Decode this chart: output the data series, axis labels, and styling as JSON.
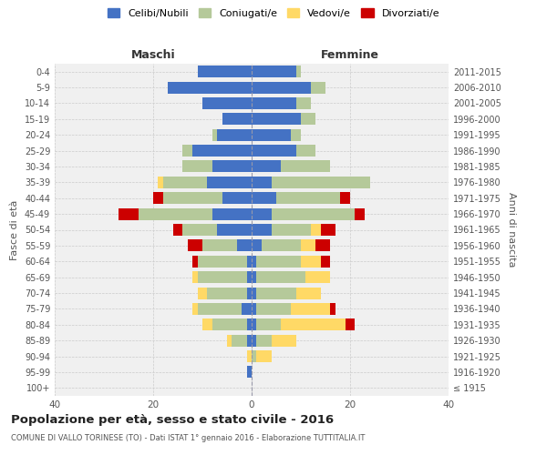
{
  "age_groups": [
    "100+",
    "95-99",
    "90-94",
    "85-89",
    "80-84",
    "75-79",
    "70-74",
    "65-69",
    "60-64",
    "55-59",
    "50-54",
    "45-49",
    "40-44",
    "35-39",
    "30-34",
    "25-29",
    "20-24",
    "15-19",
    "10-14",
    "5-9",
    "0-4"
  ],
  "birth_years": [
    "≤ 1915",
    "1916-1920",
    "1921-1925",
    "1926-1930",
    "1931-1935",
    "1936-1940",
    "1941-1945",
    "1946-1950",
    "1951-1955",
    "1956-1960",
    "1961-1965",
    "1966-1970",
    "1971-1975",
    "1976-1980",
    "1981-1985",
    "1986-1990",
    "1991-1995",
    "1996-2000",
    "2001-2005",
    "2006-2010",
    "2011-2015"
  ],
  "male": {
    "celibi": [
      0,
      1,
      0,
      1,
      1,
      2,
      1,
      1,
      1,
      3,
      7,
      8,
      6,
      9,
      8,
      12,
      7,
      6,
      10,
      17,
      11
    ],
    "coniugati": [
      0,
      0,
      0,
      3,
      7,
      9,
      8,
      10,
      10,
      7,
      7,
      15,
      12,
      9,
      6,
      2,
      1,
      0,
      0,
      0,
      0
    ],
    "vedovi": [
      0,
      0,
      1,
      1,
      2,
      1,
      2,
      1,
      0,
      0,
      0,
      0,
      0,
      1,
      0,
      0,
      0,
      0,
      0,
      0,
      0
    ],
    "divorziati": [
      0,
      0,
      0,
      0,
      0,
      0,
      0,
      0,
      1,
      3,
      2,
      4,
      2,
      0,
      0,
      0,
      0,
      0,
      0,
      0,
      0
    ]
  },
  "female": {
    "nubili": [
      0,
      0,
      0,
      1,
      1,
      1,
      1,
      1,
      1,
      2,
      4,
      4,
      5,
      4,
      6,
      9,
      8,
      10,
      9,
      12,
      9
    ],
    "coniugate": [
      0,
      0,
      1,
      3,
      5,
      7,
      8,
      10,
      9,
      8,
      8,
      17,
      13,
      20,
      10,
      4,
      2,
      3,
      3,
      3,
      1
    ],
    "vedove": [
      0,
      0,
      3,
      5,
      13,
      8,
      5,
      5,
      4,
      3,
      2,
      0,
      0,
      0,
      0,
      0,
      0,
      0,
      0,
      0,
      0
    ],
    "divorziate": [
      0,
      0,
      0,
      0,
      2,
      1,
      0,
      0,
      2,
      3,
      3,
      2,
      2,
      0,
      0,
      0,
      0,
      0,
      0,
      0,
      0
    ]
  },
  "colors": {
    "celibi_nubili": "#4472c4",
    "coniugati_e": "#b5c99a",
    "vedovi_e": "#ffd966",
    "divorziati_e": "#cc0000"
  },
  "title": "Popolazione per età, sesso e stato civile - 2016",
  "subtitle": "COMUNE DI VALLO TORINESE (TO) - Dati ISTAT 1° gennaio 2016 - Elaborazione TUTTITALIA.IT",
  "xlabel_left": "Maschi",
  "xlabel_right": "Femmine",
  "ylabel_left": "Fasce di età",
  "ylabel_right": "Anni di nascita",
  "xlim": 40,
  "legend_labels": [
    "Celibi/Nubili",
    "Coniugati/e",
    "Vedovi/e",
    "Divorziati/e"
  ],
  "bg_color": "#ffffff",
  "grid_color": "#cccccc"
}
